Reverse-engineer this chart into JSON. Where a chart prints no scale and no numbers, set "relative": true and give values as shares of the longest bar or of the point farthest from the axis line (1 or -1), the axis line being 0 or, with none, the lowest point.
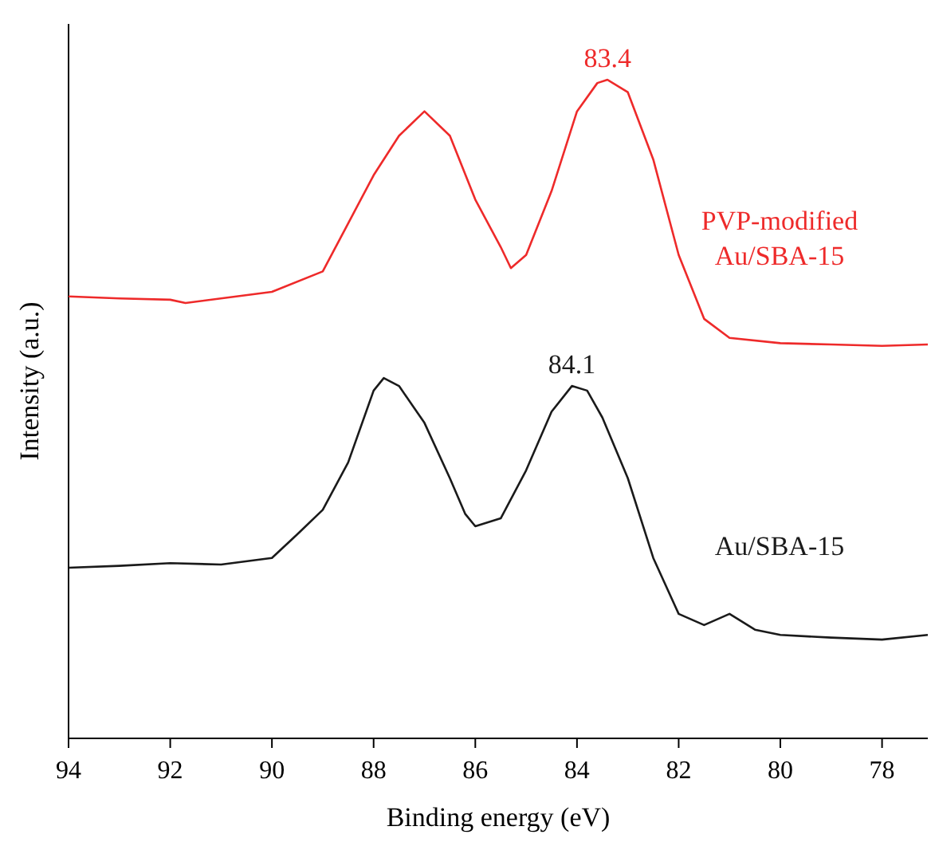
{
  "chart_data": {
    "type": "line",
    "relative": true,
    "xlabel": "Binding energy (eV)",
    "ylabel": "Intensity (a.u.)",
    "xlim": [
      94,
      77.1
    ],
    "xticks": [
      94,
      92,
      90,
      88,
      86,
      84,
      82,
      80,
      78
    ],
    "grid": false,
    "marker": "none",
    "line_style": "solid",
    "tick_labels": "x",
    "annotations": [
      {
        "text": "83.4",
        "x": 83.4,
        "y": 1
      },
      {
        "text": "84.1",
        "x": 84.1,
        "y": 0.535
      }
    ],
    "series": [
      {
        "name": "PVP-modified Au/SBA-15",
        "color": "#ee2a2a",
        "x": [
          94,
          93,
          92,
          91.7,
          90,
          89,
          88.5,
          88,
          87.5,
          87,
          86.5,
          86,
          85.5,
          85.3,
          85,
          84.5,
          84,
          83.6,
          83.4,
          83,
          82.5,
          82,
          81.5,
          81,
          80,
          79,
          78,
          77.1
        ],
        "values": [
          0.671,
          0.668,
          0.666,
          0.661,
          0.678,
          0.709,
          0.782,
          0.855,
          0.915,
          0.952,
          0.915,
          0.818,
          0.746,
          0.714,
          0.734,
          0.831,
          0.952,
          0.995,
          1,
          0.981,
          0.879,
          0.734,
          0.637,
          0.608,
          0.6,
          0.598,
          0.596,
          0.598
        ]
      },
      {
        "name": "Au/SBA-15",
        "color": "#1a1a1a",
        "x": [
          94,
          93,
          92,
          91,
          90,
          89.5,
          89,
          88.5,
          88,
          87.8,
          87.5,
          87,
          86.5,
          86.2,
          86,
          85.5,
          85,
          84.5,
          84.1,
          83.8,
          83.5,
          83,
          82.5,
          82,
          81.5,
          81,
          80.5,
          80,
          79,
          78,
          77.1
        ],
        "values": [
          0.259,
          0.262,
          0.266,
          0.264,
          0.274,
          0.31,
          0.347,
          0.419,
          0.528,
          0.547,
          0.535,
          0.479,
          0.395,
          0.341,
          0.322,
          0.334,
          0.407,
          0.496,
          0.535,
          0.528,
          0.487,
          0.395,
          0.274,
          0.189,
          0.172,
          0.189,
          0.165,
          0.157,
          0.153,
          0.15,
          0.157
        ]
      }
    ]
  }
}
